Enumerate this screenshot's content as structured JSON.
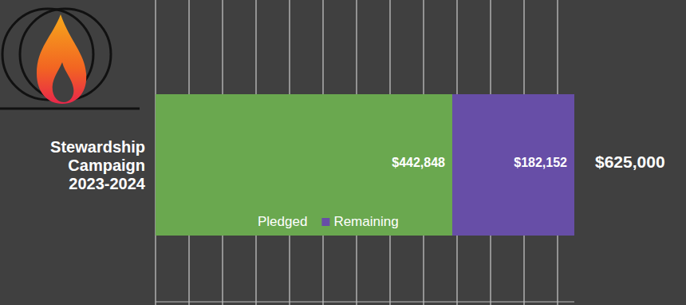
{
  "chart_data": {
    "type": "bar",
    "orientation": "horizontal",
    "stacked": true,
    "categories": [
      "Stewardship Campaign 2023-2024"
    ],
    "series": [
      {
        "name": "Pledged",
        "color": "#6aa84f",
        "values": [
          442848
        ],
        "value_labels": [
          "$442,848"
        ]
      },
      {
        "name": "Remaining",
        "color": "#674ea7",
        "values": [
          182152
        ],
        "value_labels": [
          "$182,152"
        ]
      }
    ],
    "xlim": [
      0,
      625000
    ],
    "xticks": [
      0,
      50000,
      100000,
      150000,
      200000,
      250000,
      300000,
      350000,
      400000,
      450000,
      500000,
      550000,
      600000
    ],
    "tick_labels": false,
    "grid": true,
    "data_labels": true,
    "legend": "bottom",
    "annotations": [
      {
        "value": 625000,
        "label": "$625,000"
      }
    ]
  }
}
